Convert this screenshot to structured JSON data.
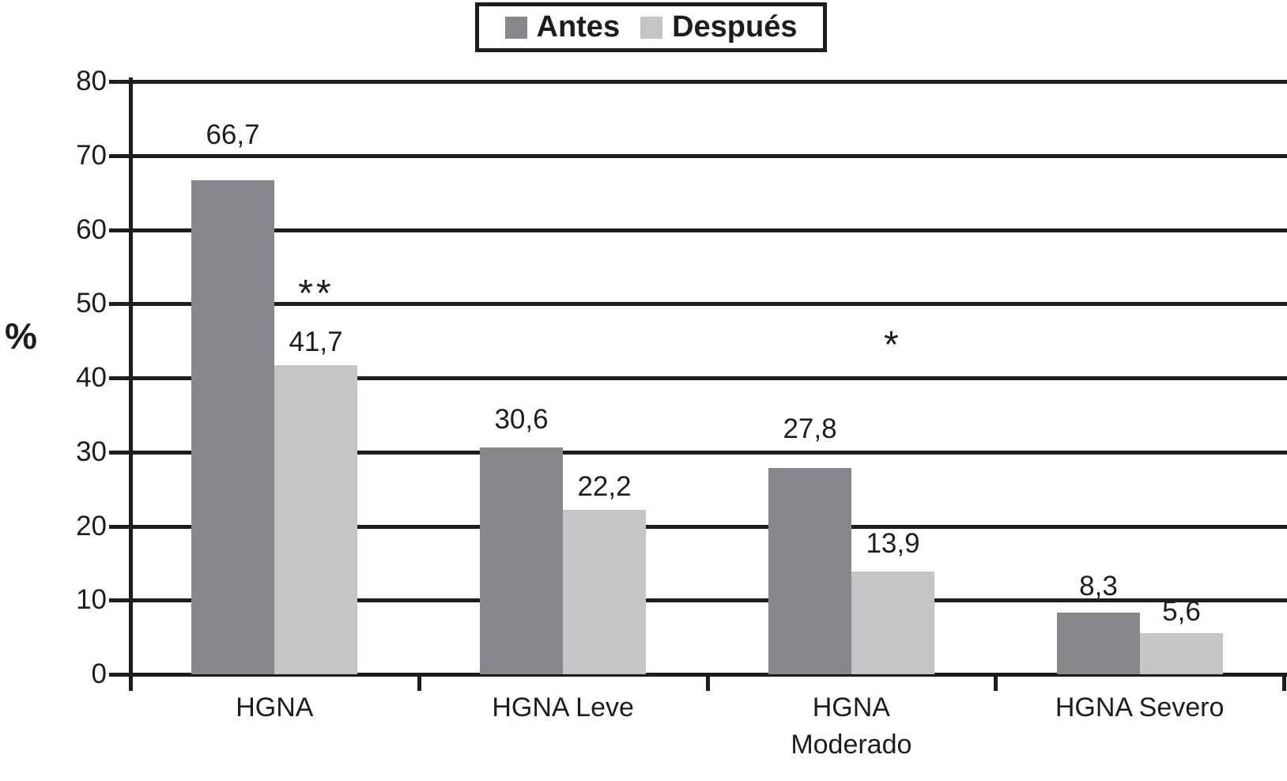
{
  "ylabel_display": "%",
  "chart_data": {
    "type": "bar",
    "title": "",
    "ylabel": "%",
    "xlabel": "",
    "categories": [
      "HGNA",
      "HGNA Leve",
      "HGNA\nModerado",
      "HGNA Severo"
    ],
    "series": [
      {
        "name": "Antes",
        "color": "#86888b",
        "values": [
          66.7,
          30.6,
          27.8,
          8.3
        ],
        "labels": [
          "66,7",
          "30,6",
          "27,8",
          "8,3"
        ]
      },
      {
        "name": "Después",
        "color": "#c4c5c7",
        "values": [
          41.7,
          22.2,
          13.9,
          5.6
        ],
        "labels": [
          "41,7",
          "22,2",
          "13,9",
          "5,6"
        ]
      }
    ],
    "ylim": [
      0,
      80
    ],
    "y_ticks": [
      0,
      10,
      20,
      30,
      40,
      50,
      60,
      70,
      80
    ],
    "grid": true,
    "gridline_color": "#1d1d1b",
    "legend_position": "top-center",
    "value_decimal_separator": ",",
    "annotations": [
      {
        "text": "**",
        "category_index": 0,
        "series": "Después",
        "y_value": 52
      },
      {
        "text": "*",
        "category_index": 2,
        "series": "Después",
        "y_value": 45
      }
    ]
  }
}
